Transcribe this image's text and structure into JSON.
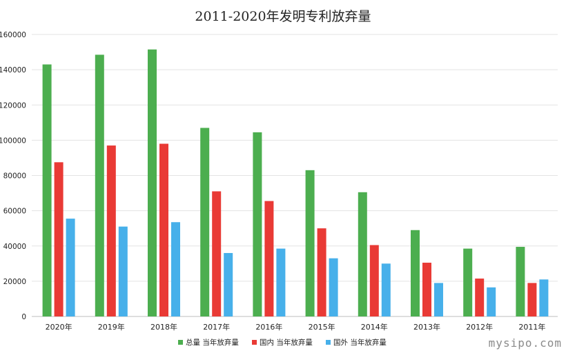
{
  "chart_data": {
    "type": "bar",
    "title": "2011-2020年发明专利放弃量",
    "categories": [
      "2020年",
      "2019年",
      "2018年",
      "2017年",
      "2016年",
      "2015年",
      "2014年",
      "2013年",
      "2012年",
      "2011年"
    ],
    "series": [
      {
        "name": "总量 当年放弃量",
        "color": "#4cae4f",
        "values": [
          143000,
          148500,
          151500,
          107000,
          104500,
          83000,
          70500,
          49000,
          38500,
          39500
        ]
      },
      {
        "name": "国内 当年放弃量",
        "color": "#e93a35",
        "values": [
          87500,
          97000,
          98000,
          71000,
          65500,
          50000,
          40500,
          30500,
          21500,
          19000
        ]
      },
      {
        "name": "国外 当年放弃量",
        "color": "#47b0ea",
        "values": [
          55500,
          51000,
          53500,
          36000,
          38500,
          33000,
          30000,
          19000,
          16500,
          21000
        ]
      }
    ],
    "ylim": [
      0,
      160000
    ],
    "yticks": [
      "0",
      "20000",
      "40000",
      "60000",
      "80000",
      "100000",
      "120000",
      "140000",
      "160000"
    ],
    "grid": true,
    "legend_position": "bottom"
  },
  "watermark": "mysipo.com"
}
